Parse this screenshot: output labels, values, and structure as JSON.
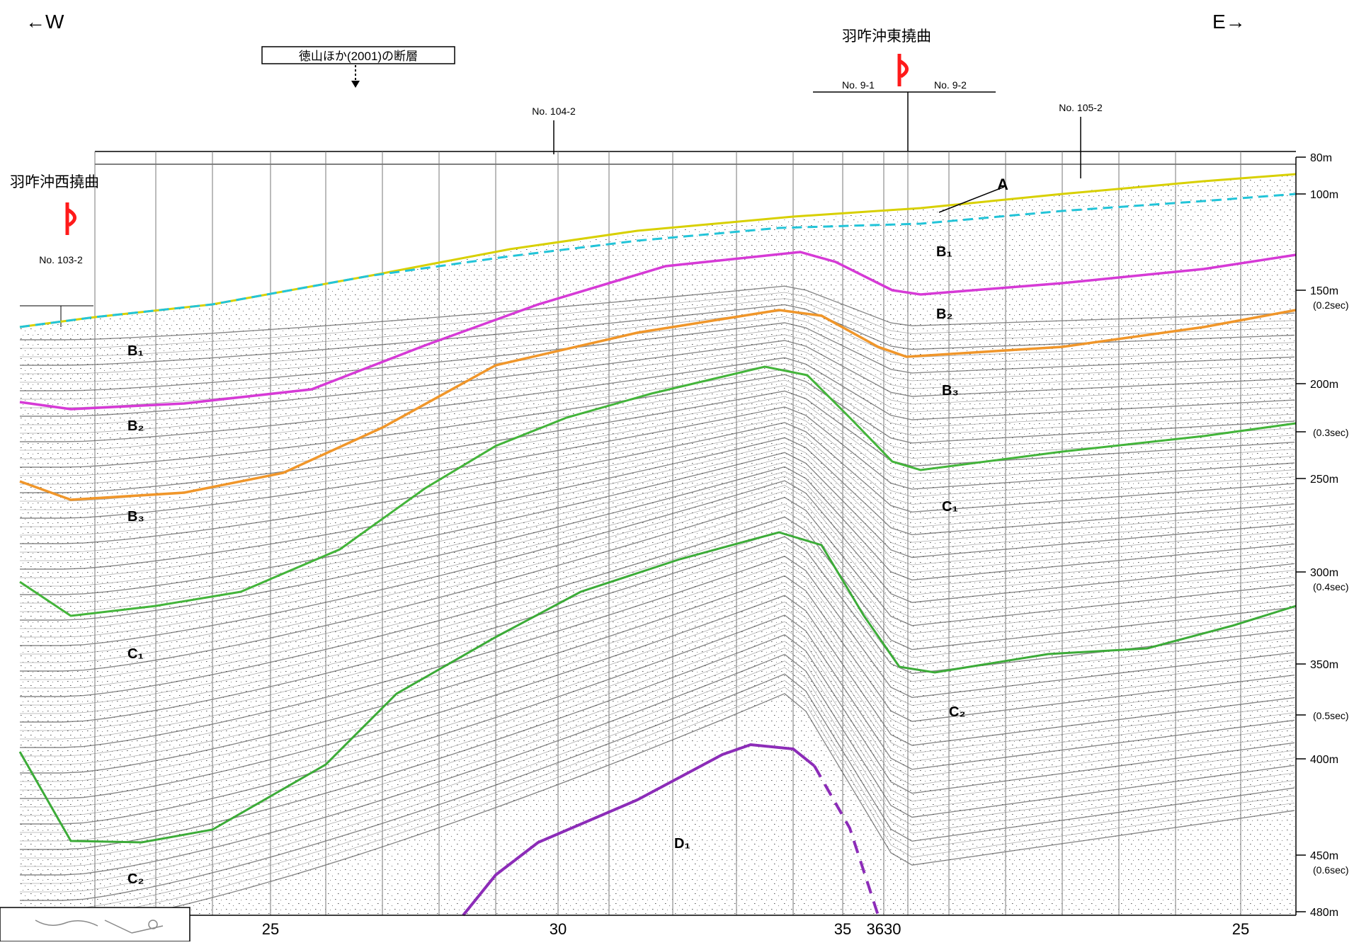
{
  "direction": {
    "west": "←W",
    "east": "E→"
  },
  "fault_label": "徳山ほか(2001)の断層",
  "flexures": {
    "east": "羽咋沖東撓曲",
    "west": "羽咋沖西撓曲"
  },
  "crossings": {
    "no9_1": "No. 9-1",
    "no9_2": "No. 9-2",
    "no104_2": "No. 104-2",
    "no105_2": "No. 105-2",
    "no103_2": "No. 103-2"
  },
  "depth_scale": [
    {
      "label": "80m"
    },
    {
      "label": "100m"
    },
    {
      "label": "150m",
      "sub": "(0.2sec)"
    },
    {
      "label": "200m"
    },
    {
      "label": "",
      "sub": "(0.3sec)"
    },
    {
      "label": "250m"
    },
    {
      "label": "300m",
      "sub": "(0.4sec)"
    },
    {
      "label": "350m"
    },
    {
      "label": "",
      "sub": "(0.5sec)"
    },
    {
      "label": "400m"
    },
    {
      "label": "450m",
      "sub": "(0.6sec)"
    },
    {
      "label": "480m"
    }
  ],
  "bottom_ticks": [
    "25",
    "30",
    "35",
    "3630",
    "25"
  ],
  "layers": {
    "A": "A",
    "B1": "B₁",
    "B2": "B₂",
    "B3": "B₃",
    "C1": "C₁",
    "C2": "C₂",
    "D1": "D₁"
  },
  "colors": {
    "seafloor_yellow": "#d8d000",
    "seafloor_cyan": "#22c4d8",
    "b1_b2_magenta": "#d63ad6",
    "b2_b3_orange": "#f0962a",
    "b3_c1_green": "#43b43a",
    "c1_c2_green": "#3cab38",
    "d1_purple": "#8c2cb8",
    "flexure_red": "#ff1a1a"
  }
}
